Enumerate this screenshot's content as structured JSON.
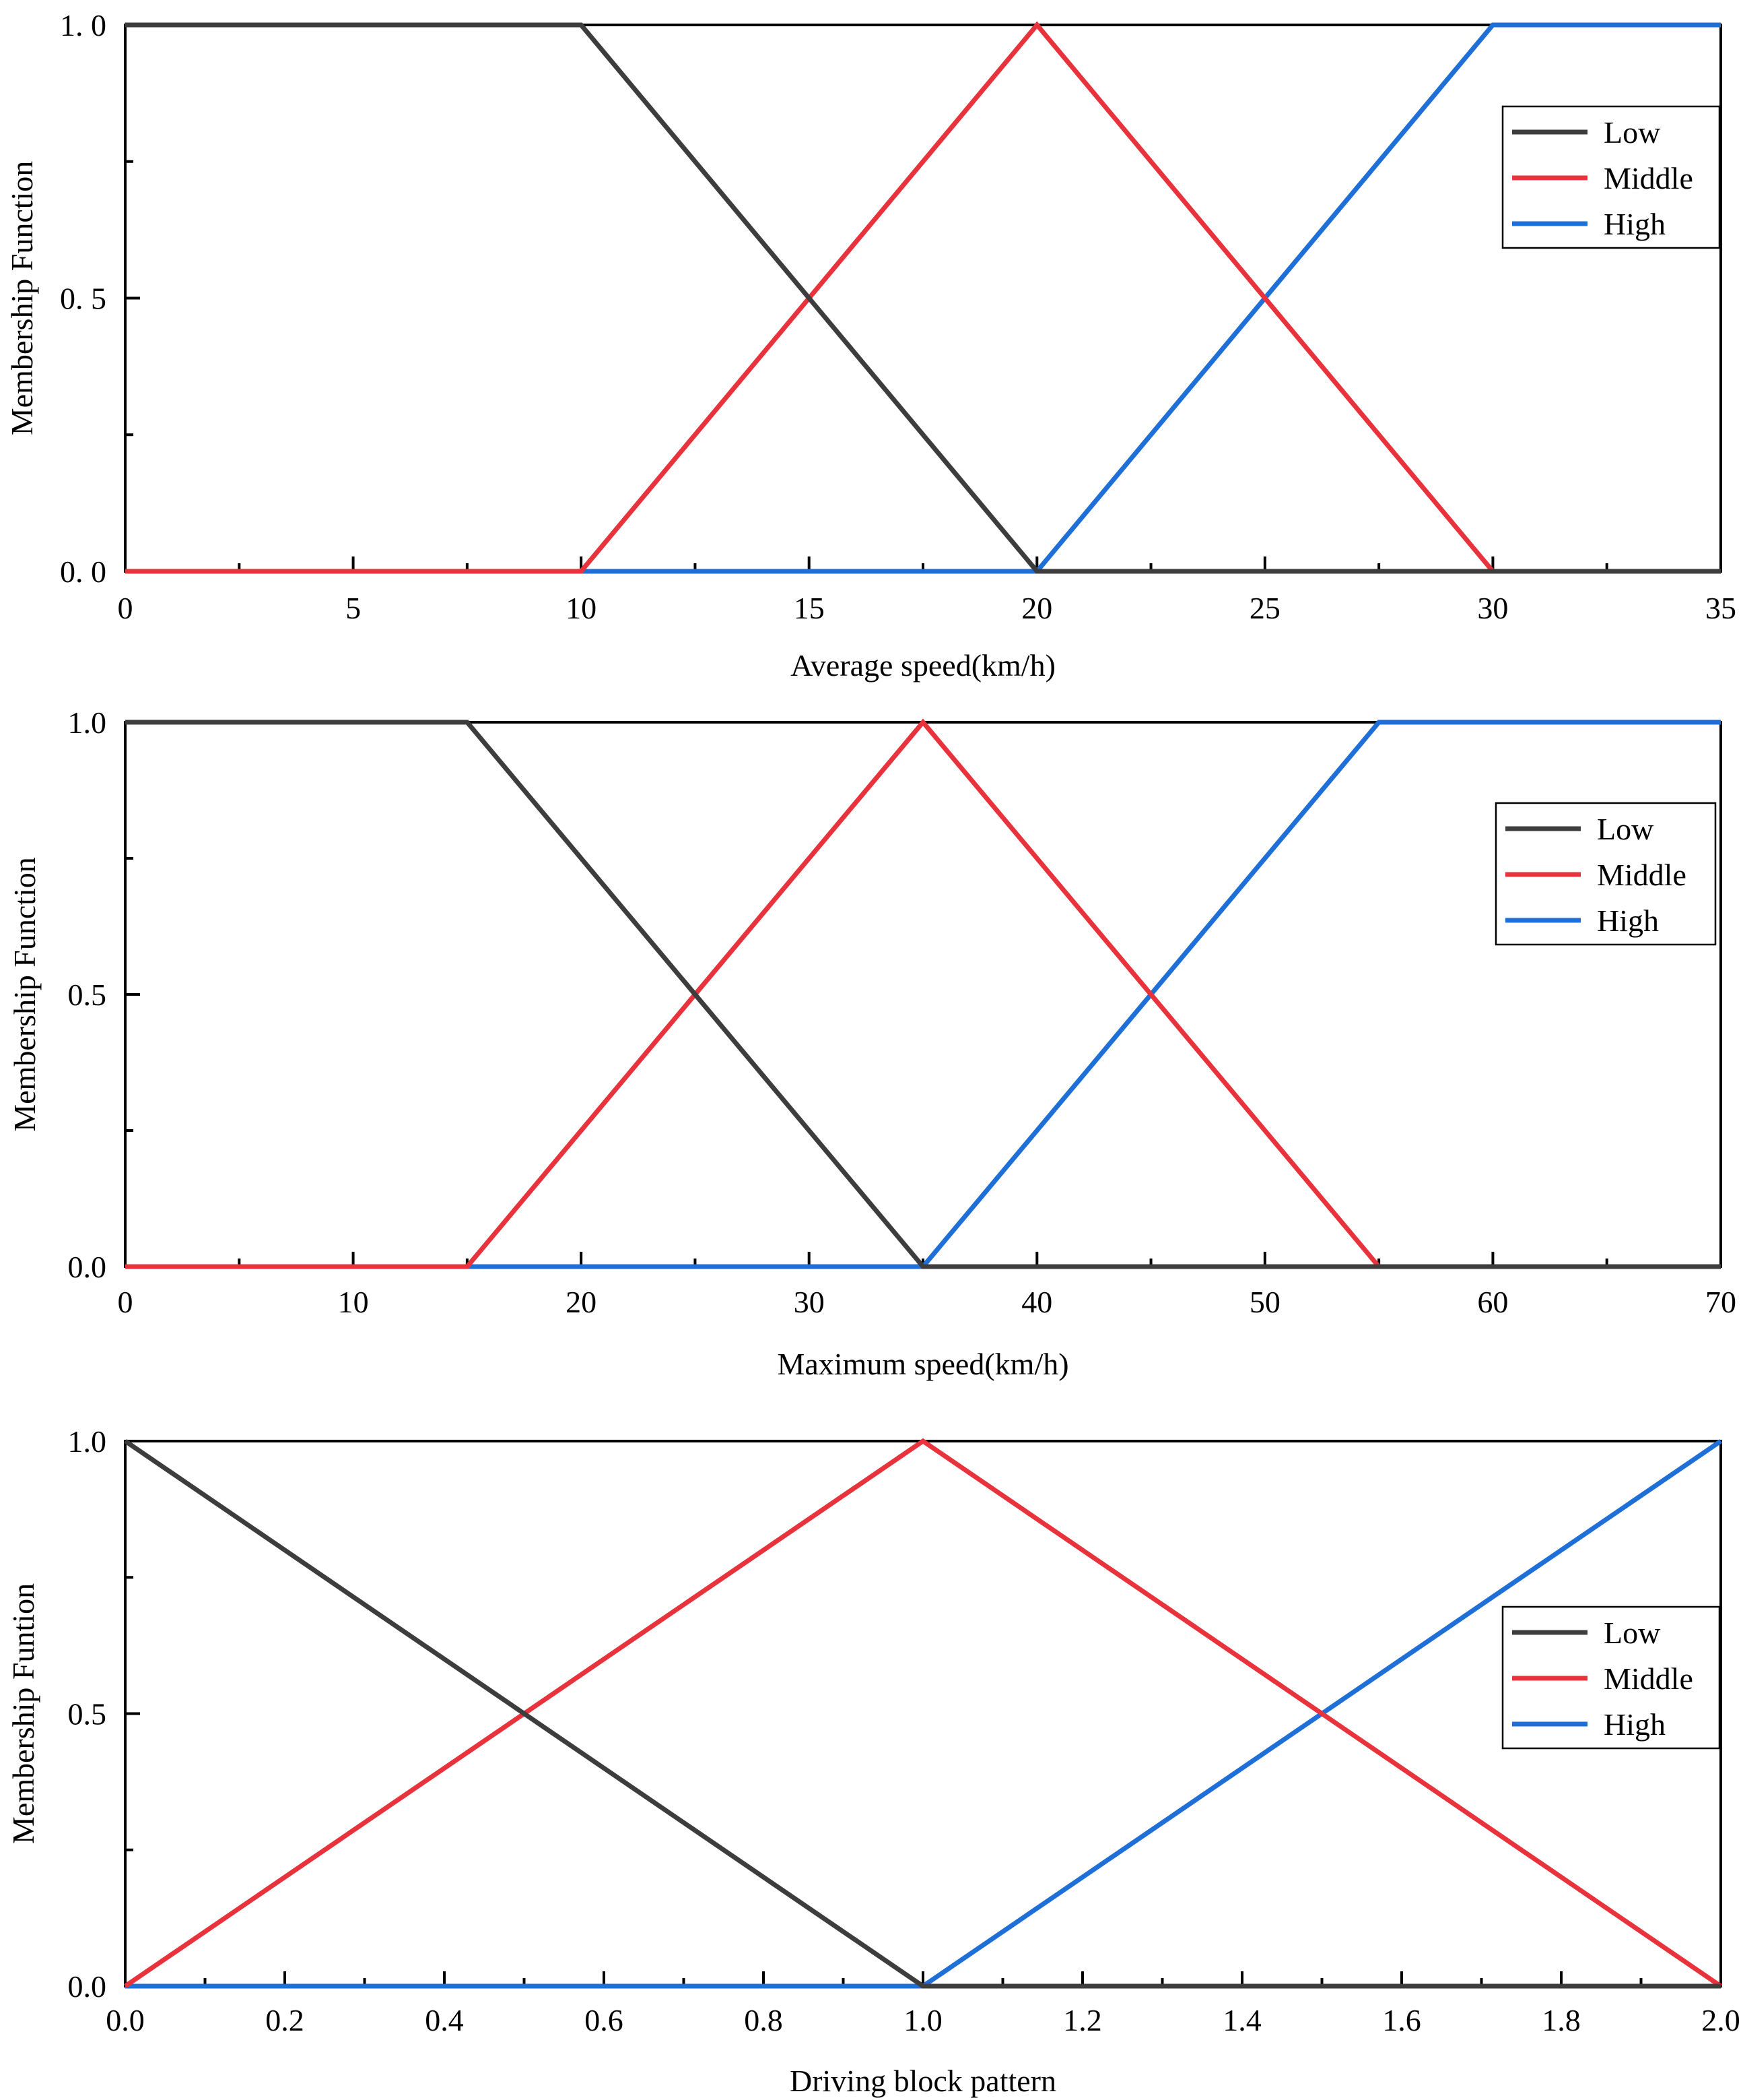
{
  "chart_data": [
    {
      "type": "line",
      "title": "",
      "xlabel": "Average speed(km/h)",
      "ylabel": "Membership Function",
      "xlim": [
        0,
        35
      ],
      "ylim": [
        0,
        1
      ],
      "x_ticks": [
        0,
        5,
        10,
        15,
        20,
        25,
        30,
        35
      ],
      "x_tick_labels": [
        "0",
        "5",
        "10",
        "15",
        "20",
        "25",
        "30",
        "35"
      ],
      "x_minor_step": 2.5,
      "y_ticks": [
        0,
        0.5,
        1
      ],
      "y_tick_labels": [
        "0. 0",
        "0. 5",
        "1. 0"
      ],
      "y_minor_step": 0.25,
      "grid": false,
      "legend_position": "upper-right",
      "series": [
        {
          "name": "Low",
          "color": "#3d3d3d",
          "x": [
            0,
            10,
            20,
            35
          ],
          "y": [
            1,
            1,
            0,
            0
          ]
        },
        {
          "name": "Middle",
          "color": "#e8323c",
          "x": [
            0,
            10,
            20,
            30,
            35
          ],
          "y": [
            0,
            0,
            1,
            0,
            0
          ]
        },
        {
          "name": "High",
          "color": "#1f6fd8",
          "x": [
            0,
            20,
            30,
            35
          ],
          "y": [
            0,
            0,
            1,
            1
          ]
        }
      ]
    },
    {
      "type": "line",
      "title": "",
      "xlabel": "Maximum speed(km/h)",
      "ylabel": "Membership Function",
      "xlim": [
        0,
        70
      ],
      "ylim": [
        0,
        1
      ],
      "x_ticks": [
        0,
        10,
        20,
        30,
        40,
        50,
        60,
        70
      ],
      "x_tick_labels": [
        "0",
        "10",
        "20",
        "30",
        "40",
        "50",
        "60",
        "70"
      ],
      "x_minor_step": 5,
      "y_ticks": [
        0,
        0.5,
        1
      ],
      "y_tick_labels": [
        "0.0",
        "0.5",
        "1.0"
      ],
      "y_minor_step": 0.25,
      "grid": false,
      "legend_position": "upper-right",
      "series": [
        {
          "name": "Low",
          "color": "#3d3d3d",
          "x": [
            0,
            15,
            35,
            70
          ],
          "y": [
            1,
            1,
            0,
            0
          ]
        },
        {
          "name": "Middle",
          "color": "#e8323c",
          "x": [
            0,
            15,
            35,
            55,
            70
          ],
          "y": [
            0,
            0,
            1,
            0,
            0
          ]
        },
        {
          "name": "High",
          "color": "#1f6fd8",
          "x": [
            0,
            35,
            55,
            70
          ],
          "y": [
            0,
            0,
            1,
            1
          ]
        }
      ]
    },
    {
      "type": "line",
      "title": "",
      "xlabel": "Driving block pattern",
      "ylabel": "Membership Funtion",
      "xlim": [
        0,
        2
      ],
      "ylim": [
        0,
        1
      ],
      "x_ticks": [
        0,
        0.2,
        0.4,
        0.6,
        0.8,
        1.0,
        1.2,
        1.4,
        1.6,
        1.8,
        2.0
      ],
      "x_tick_labels": [
        "0.0",
        "0.2",
        "0.4",
        "0.6",
        "0.8",
        "1.0",
        "1.2",
        "1.4",
        "1.6",
        "1.8",
        "2.0"
      ],
      "x_minor_step": 0.1,
      "y_ticks": [
        0,
        0.5,
        1
      ],
      "y_tick_labels": [
        "0.0",
        "0.5",
        "1.0"
      ],
      "y_minor_step": 0.25,
      "grid": false,
      "legend_position": "right",
      "series": [
        {
          "name": "Low",
          "color": "#3d3d3d",
          "x": [
            0,
            1,
            2
          ],
          "y": [
            1,
            0,
            0
          ]
        },
        {
          "name": "Middle",
          "color": "#e8323c",
          "x": [
            0,
            1,
            2
          ],
          "y": [
            0,
            1,
            0
          ]
        },
        {
          "name": "High",
          "color": "#1f6fd8",
          "x": [
            0,
            1,
            2
          ],
          "y": [
            0,
            0,
            1
          ]
        }
      ]
    }
  ]
}
